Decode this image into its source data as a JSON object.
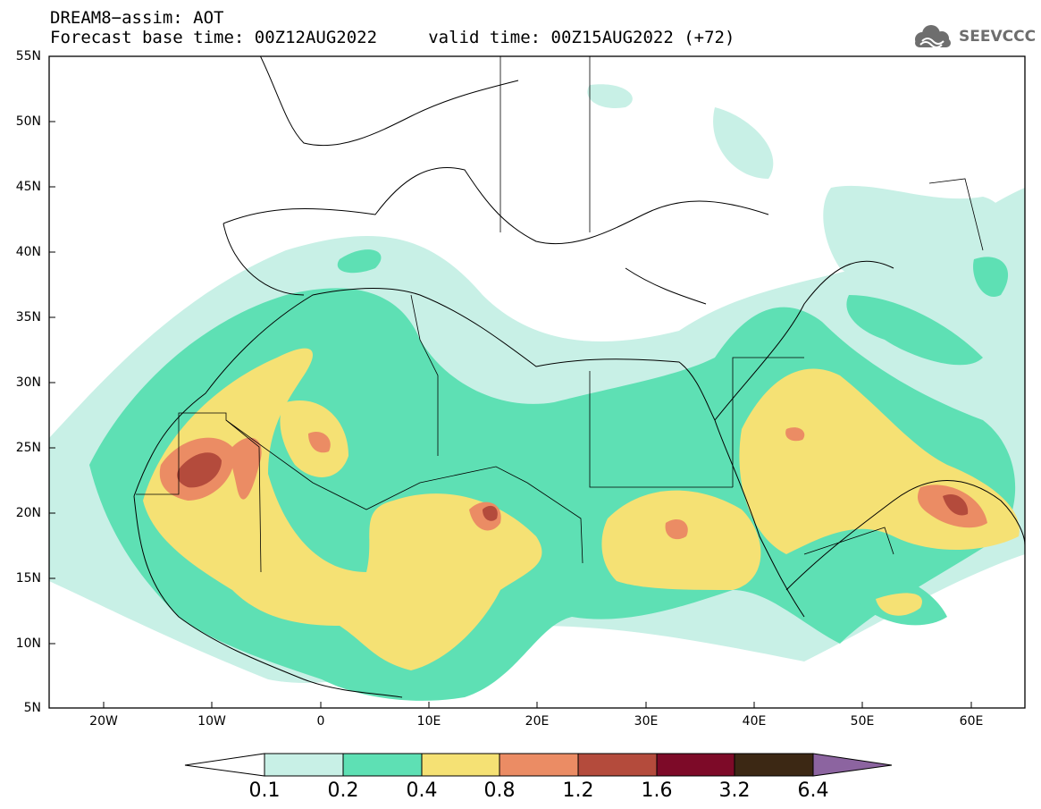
{
  "title_line1": "DREAM8−assim: AOT",
  "title_line2": "Forecast base time: 00Z12AUG2022     valid time: 00Z15AUG2022 (+72)",
  "logo_text": "SEEVCCC",
  "lat_labels": [
    "55N",
    "50N",
    "45N",
    "40N",
    "35N",
    "30N",
    "25N",
    "20N",
    "15N",
    "10N",
    "5N"
  ],
  "lon_labels": [
    "20W",
    "10W",
    "0",
    "10E",
    "20E",
    "30E",
    "40E",
    "50E",
    "60E"
  ],
  "colorbar": {
    "thresholds": [
      "0.1",
      "0.2",
      "0.4",
      "0.8",
      "1.2",
      "1.6",
      "3.2",
      "6.4"
    ],
    "colors": [
      "#ffffff",
      "#c8f0e6",
      "#5ee0b4",
      "#f5e174",
      "#eb8c64",
      "#b44b3c",
      "#7d0a28",
      "#3c2814",
      "#8c64a0"
    ]
  },
  "map": {
    "lat_range": [
      5,
      55
    ],
    "lon_range": [
      -25,
      65
    ]
  }
}
